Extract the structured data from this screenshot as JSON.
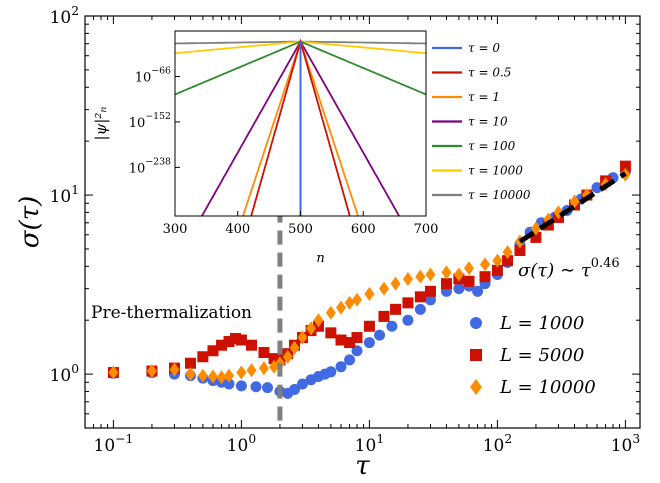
{
  "chart_data": [
    {
      "type": "scatter",
      "xscale": "log",
      "yscale": "log",
      "xlim": [
        0.06,
        1300
      ],
      "ylim": [
        0.5,
        100
      ],
      "xlabel": "τ",
      "ylabel": "σ(τ)",
      "x_ticks": [
        {
          "value": 0.1,
          "base": "10",
          "exp": "−1"
        },
        {
          "value": 1,
          "base": "10",
          "exp": "0"
        },
        {
          "value": 10,
          "base": "10",
          "exp": "1"
        },
        {
          "value": 100,
          "base": "10",
          "exp": "2"
        },
        {
          "value": 1000,
          "base": "10",
          "exp": "3"
        }
      ],
      "y_ticks": [
        {
          "value": 1,
          "base": "10",
          "exp": "0"
        },
        {
          "value": 10,
          "base": "10",
          "exp": "1"
        },
        {
          "value": 100,
          "base": "10",
          "exp": "2"
        }
      ],
      "legend_position": "bottom-right",
      "series": [
        {
          "name": "L = 1000",
          "marker": "circle",
          "color": "#4169e1",
          "points": [
            [
              0.1,
              1.01
            ],
            [
              0.2,
              1.02
            ],
            [
              0.3,
              1.0
            ],
            [
              0.4,
              0.98
            ],
            [
              0.5,
              0.95
            ],
            [
              0.6,
              0.92
            ],
            [
              0.7,
              0.9
            ],
            [
              0.8,
              0.88
            ],
            [
              1.0,
              0.86
            ],
            [
              1.3,
              0.85
            ],
            [
              1.6,
              0.84
            ],
            [
              2.0,
              0.8
            ],
            [
              2.3,
              0.78
            ],
            [
              2.6,
              0.82
            ],
            [
              3.0,
              0.88
            ],
            [
              3.5,
              0.93
            ],
            [
              4.0,
              0.97
            ],
            [
              4.5,
              1.0
            ],
            [
              5.0,
              1.03
            ],
            [
              6.0,
              1.1
            ],
            [
              7.0,
              1.2
            ],
            [
              8.0,
              1.35
            ],
            [
              10,
              1.5
            ],
            [
              12,
              1.65
            ],
            [
              15,
              1.85
            ],
            [
              20,
              2.0
            ],
            [
              25,
              2.3
            ],
            [
              30,
              2.6
            ],
            [
              40,
              2.9
            ],
            [
              50,
              3.0
            ],
            [
              60,
              3.1
            ],
            [
              70,
              2.9
            ],
            [
              80,
              3.2
            ],
            [
              100,
              3.6
            ],
            [
              120,
              4.2
            ],
            [
              150,
              5.3
            ],
            [
              180,
              6.2
            ],
            [
              220,
              7.0
            ],
            [
              280,
              7.5
            ],
            [
              350,
              8.2
            ],
            [
              450,
              9.5
            ],
            [
              600,
              11
            ],
            [
              800,
              12.5
            ],
            [
              1000,
              13.5
            ]
          ]
        },
        {
          "name": "L = 5000",
          "marker": "square",
          "color": "#cc1100",
          "points": [
            [
              0.1,
              1.02
            ],
            [
              0.2,
              1.04
            ],
            [
              0.3,
              1.08
            ],
            [
              0.4,
              1.15
            ],
            [
              0.5,
              1.25
            ],
            [
              0.6,
              1.35
            ],
            [
              0.7,
              1.45
            ],
            [
              0.8,
              1.52
            ],
            [
              0.9,
              1.58
            ],
            [
              1.0,
              1.55
            ],
            [
              1.2,
              1.45
            ],
            [
              1.5,
              1.32
            ],
            [
              1.8,
              1.22
            ],
            [
              2.0,
              1.2
            ],
            [
              2.3,
              1.3
            ],
            [
              2.6,
              1.45
            ],
            [
              3.0,
              1.6
            ],
            [
              3.5,
              1.75
            ],
            [
              4.0,
              1.85
            ],
            [
              5.0,
              1.7
            ],
            [
              6.0,
              1.55
            ],
            [
              7.0,
              1.5
            ],
            [
              8.0,
              1.6
            ],
            [
              10,
              1.85
            ],
            [
              13,
              2.1
            ],
            [
              16,
              2.3
            ],
            [
              20,
              2.5
            ],
            [
              25,
              2.7
            ],
            [
              30,
              2.9
            ],
            [
              40,
              3.2
            ],
            [
              50,
              3.4
            ],
            [
              60,
              3.3
            ],
            [
              80,
              3.5
            ],
            [
              100,
              3.8
            ],
            [
              120,
              4.3
            ],
            [
              150,
              4.9
            ],
            [
              200,
              5.8
            ],
            [
              250,
              6.8
            ],
            [
              300,
              7.5
            ],
            [
              400,
              8.8
            ],
            [
              500,
              10
            ],
            [
              700,
              12
            ],
            [
              1000,
              14.5
            ]
          ]
        },
        {
          "name": "L = 10000",
          "marker": "diamond",
          "color": "#ff8c00",
          "points": [
            [
              0.1,
              1.02
            ],
            [
              0.2,
              1.04
            ],
            [
              0.3,
              1.06
            ],
            [
              0.4,
              1.0
            ],
            [
              0.5,
              0.98
            ],
            [
              0.6,
              0.97
            ],
            [
              0.7,
              0.96
            ],
            [
              0.8,
              0.98
            ],
            [
              1.0,
              1.02
            ],
            [
              1.2,
              1.05
            ],
            [
              1.5,
              1.08
            ],
            [
              1.8,
              1.1
            ],
            [
              2.0,
              1.15
            ],
            [
              2.3,
              1.25
            ],
            [
              2.6,
              1.4
            ],
            [
              3.0,
              1.6
            ],
            [
              3.5,
              1.8
            ],
            [
              4.0,
              2.0
            ],
            [
              5.0,
              2.2
            ],
            [
              6.0,
              2.35
            ],
            [
              7.0,
              2.5
            ],
            [
              8.0,
              2.6
            ],
            [
              10,
              2.8
            ],
            [
              13,
              3.0
            ],
            [
              16,
              3.2
            ],
            [
              20,
              3.4
            ],
            [
              25,
              3.5
            ],
            [
              30,
              3.6
            ],
            [
              40,
              3.7
            ],
            [
              50,
              3.6
            ],
            [
              60,
              3.9
            ],
            [
              80,
              4.1
            ],
            [
              100,
              4.3
            ],
            [
              120,
              4.8
            ],
            [
              150,
              5.5
            ],
            [
              200,
              6.5
            ],
            [
              250,
              7.3
            ],
            [
              300,
              8.0
            ],
            [
              400,
              9.2
            ],
            [
              500,
              10
            ],
            [
              700,
              11.5
            ],
            [
              1000,
              13
            ]
          ]
        }
      ],
      "fit_line": {
        "x": [
          150,
          1000
        ],
        "y": [
          5.5,
          13.2
        ],
        "label_base": "σ(τ) ∼ τ",
        "label_exp": "0.46"
      },
      "vline": {
        "x": 2.0,
        "y": [
          0.55,
          18
        ]
      },
      "annotation": "Pre-thermalization"
    },
    {
      "type": "line",
      "xlim": [
        300,
        700
      ],
      "ylim_log10": [
        -330,
        20
      ],
      "xlabel": "n",
      "ylabel": "|ψ|²ₙ",
      "x_ticks": [
        300,
        400,
        500,
        600,
        700
      ],
      "y_ticks": [
        {
          "value": -66,
          "base": "10",
          "exp": "−66"
        },
        {
          "value": -152,
          "base": "10",
          "exp": "−152"
        },
        {
          "value": -238,
          "base": "10",
          "exp": "−238"
        }
      ],
      "center": 500,
      "peak_log10": 0,
      "series": [
        {
          "name": "τ = 0",
          "color": "#4169e1",
          "slope_log10_per_site": "delta"
        },
        {
          "name": "τ = 0.5",
          "color": "#cc1100",
          "slope_log10_per_site": 4.2
        },
        {
          "name": "τ = 1",
          "color": "#ff8c00",
          "slope_log10_per_site": 3.6
        },
        {
          "name": "τ = 10",
          "color": "#800080",
          "slope_log10_per_site": 2.1
        },
        {
          "name": "τ = 100",
          "color": "#2e8b2e",
          "slope_log10_per_site": 0.5
        },
        {
          "name": "τ = 1000",
          "color": "#ffcc00",
          "slope_log10_per_site": 0.11
        },
        {
          "name": "τ = 10000",
          "color": "#808080",
          "slope_log10_per_site": 0.018
        }
      ]
    }
  ]
}
